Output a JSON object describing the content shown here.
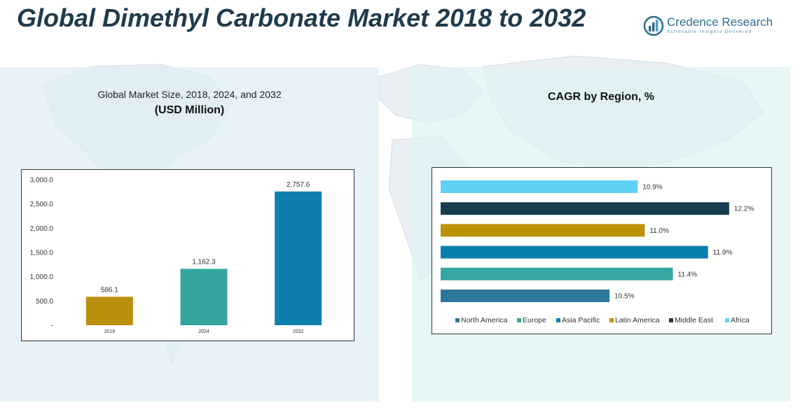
{
  "page": {
    "title": "Global Dimethyl Carbonate Market 2018 to 2032",
    "logo": {
      "name": "Credence Research",
      "tagline": "Actionable Insights Delivered"
    }
  },
  "colors": {
    "title": "#1f3b4d",
    "bar_2018": "#b8900b",
    "bar_2024": "#35a59f",
    "bar_2032": "#0c7fae",
    "north_america": "#2d779b",
    "europe": "#36a6a0",
    "asia_pacific": "#0a7fae",
    "latin_america": "#bd9109",
    "middle_east": "#173d4e",
    "africa": "#5ed1f5"
  },
  "chart_data": [
    {
      "type": "bar",
      "title": "Global Market Size, 2018, 2024, and 2032",
      "subtitle": "(USD Million)",
      "categories": [
        "2018",
        "2024",
        "2032"
      ],
      "values": [
        586.1,
        1162.3,
        2757.6
      ],
      "data_labels": [
        "586.1",
        "1,162.3",
        "2,757.6"
      ],
      "ylim": [
        0,
        3000
      ],
      "yticks": [
        0,
        500,
        1000,
        1500,
        2000,
        2500,
        3000
      ],
      "ytick_labels": [
        "-",
        "500.0",
        "1,000.0",
        "1,500.0",
        "2,000.0",
        "2,500.0",
        "3,000.0"
      ],
      "grid": false,
      "xlabel": "",
      "ylabel": ""
    },
    {
      "type": "bar",
      "orientation": "horizontal",
      "title": "CAGR by Region, %",
      "categories": [
        "North America",
        "Europe",
        "Asia Pacific",
        "Latin America",
        "Middle East",
        "Africa"
      ],
      "values": [
        10.5,
        11.4,
        11.9,
        11.0,
        12.2,
        10.9
      ],
      "data_labels": [
        "10.5%",
        "11.4%",
        "11.9%",
        "11.0%",
        "12.2%",
        "10.9%"
      ],
      "xlim": [
        8.1,
        12.4
      ],
      "legend": [
        "North America",
        "Europe",
        "Asia Pacific",
        "Latin America",
        "Middle East",
        "Africa"
      ],
      "legend_position": "bottom",
      "grid": false
    }
  ]
}
